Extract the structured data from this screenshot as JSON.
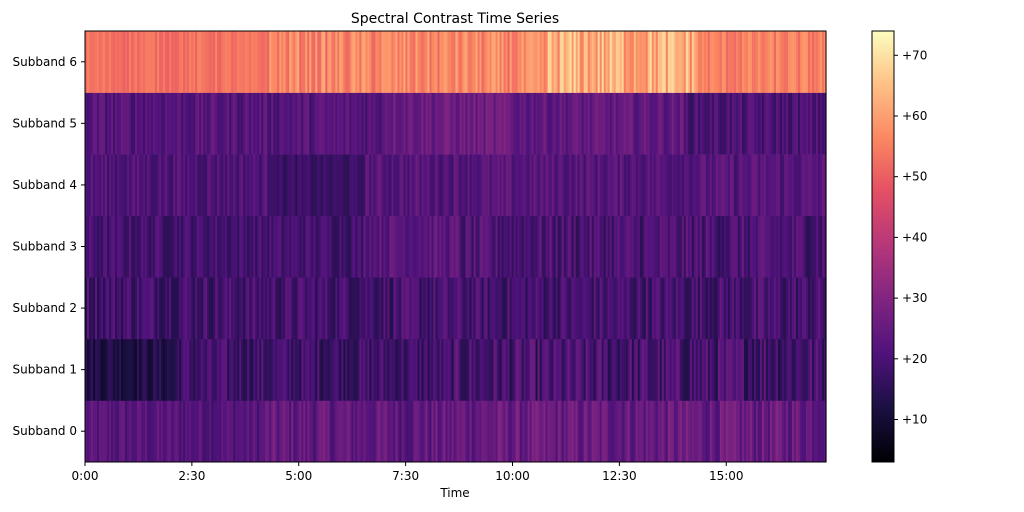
{
  "chart_data": {
    "type": "heatmap",
    "title": "Spectral Contrast Time Series",
    "xlabel": "Time",
    "ylabel": "",
    "x_ticks": [
      {
        "label": "0:00",
        "seconds": 0
      },
      {
        "label": "2:30",
        "seconds": 150
      },
      {
        "label": "5:00",
        "seconds": 300
      },
      {
        "label": "7:30",
        "seconds": 450
      },
      {
        "label": "10:00",
        "seconds": 600
      },
      {
        "label": "12:30",
        "seconds": 750
      },
      {
        "label": "15:00",
        "seconds": 900
      }
    ],
    "xlim_seconds": [
      0,
      1040
    ],
    "rows": [
      "Subband 0",
      "Subband 1",
      "Subband 2",
      "Subband 3",
      "Subband 4",
      "Subband 5",
      "Subband 6"
    ],
    "colormap": "magma",
    "colorbar": {
      "range": [
        3,
        74
      ],
      "ticks": [
        {
          "label": "+10",
          "value": 10
        },
        {
          "label": "+20",
          "value": 20
        },
        {
          "label": "+30",
          "value": 30
        },
        {
          "label": "+40",
          "value": 40
        },
        {
          "label": "+50",
          "value": 50
        },
        {
          "label": "+60",
          "value": 60
        },
        {
          "label": "+70",
          "value": 70
        }
      ]
    },
    "row_profiles": [
      {
        "row": "Subband 0",
        "segments": [
          {
            "start": 0,
            "end": 250,
            "mean": 22,
            "spread": 3
          },
          {
            "start": 250,
            "end": 520,
            "mean": 24,
            "spread": 4
          },
          {
            "start": 520,
            "end": 1040,
            "mean": 25,
            "spread": 4
          }
        ]
      },
      {
        "row": "Subband 1",
        "segments": [
          {
            "start": 0,
            "end": 130,
            "mean": 13,
            "spread": 3
          },
          {
            "start": 130,
            "end": 520,
            "mean": 18,
            "spread": 4
          },
          {
            "start": 520,
            "end": 1040,
            "mean": 19,
            "spread": 5
          }
        ]
      },
      {
        "row": "Subband 2",
        "segments": [
          {
            "start": 0,
            "end": 1040,
            "mean": 19,
            "spread": 4
          }
        ]
      },
      {
        "row": "Subband 3",
        "segments": [
          {
            "start": 0,
            "end": 390,
            "mean": 19,
            "spread": 3
          },
          {
            "start": 390,
            "end": 525,
            "mean": 23,
            "spread": 3
          },
          {
            "start": 525,
            "end": 1040,
            "mean": 20,
            "spread": 4
          }
        ]
      },
      {
        "row": "Subband 4",
        "segments": [
          {
            "start": 0,
            "end": 270,
            "mean": 21,
            "spread": 3
          },
          {
            "start": 270,
            "end": 390,
            "mean": 17,
            "spread": 2
          },
          {
            "start": 390,
            "end": 1040,
            "mean": 22,
            "spread": 3
          }
        ]
      },
      {
        "row": "Subband 5",
        "segments": [
          {
            "start": 0,
            "end": 420,
            "mean": 22,
            "spread": 3
          },
          {
            "start": 420,
            "end": 600,
            "mean": 26,
            "spread": 3
          },
          {
            "start": 600,
            "end": 840,
            "mean": 24,
            "spread": 3
          },
          {
            "start": 840,
            "end": 1040,
            "mean": 20,
            "spread": 3
          }
        ]
      },
      {
        "row": "Subband 6",
        "segments": [
          {
            "start": 0,
            "end": 260,
            "mean": 53,
            "spread": 2
          },
          {
            "start": 260,
            "end": 650,
            "mean": 56,
            "spread": 4
          },
          {
            "start": 650,
            "end": 860,
            "mean": 62,
            "spread": 6
          },
          {
            "start": 860,
            "end": 1040,
            "mean": 55,
            "spread": 3
          }
        ]
      }
    ],
    "grid": false,
    "legend": "colorbar-right"
  }
}
